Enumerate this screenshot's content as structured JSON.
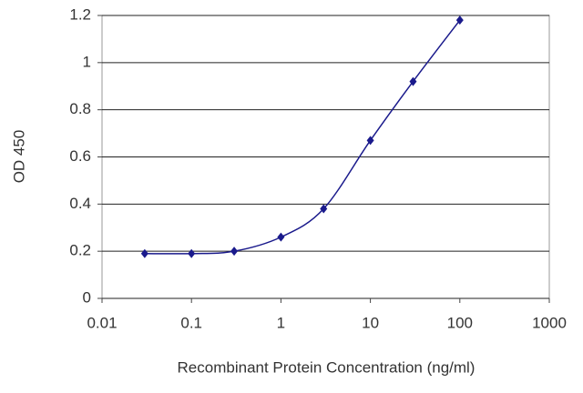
{
  "chart_data": {
    "type": "line",
    "xlabel": "Recombinant Protein Concentration (ng/ml)",
    "ylabel": "OD 450",
    "x": [
      0.03,
      0.1,
      0.3,
      1,
      3,
      10,
      30,
      100
    ],
    "series": [
      {
        "color": "#1a1a8c",
        "values": [
          0.19,
          0.19,
          0.2,
          0.26,
          0.38,
          0.67,
          0.92,
          1.18
        ]
      }
    ],
    "xscale": "log",
    "xlim": [
      0.01,
      1000
    ],
    "xticks": [
      0.01,
      0.1,
      1,
      10,
      100,
      1000
    ],
    "ylim": [
      0,
      1.2
    ],
    "yticks": [
      0,
      0.2,
      0.4,
      0.6,
      0.8,
      1,
      1.2
    ],
    "grid": true
  }
}
